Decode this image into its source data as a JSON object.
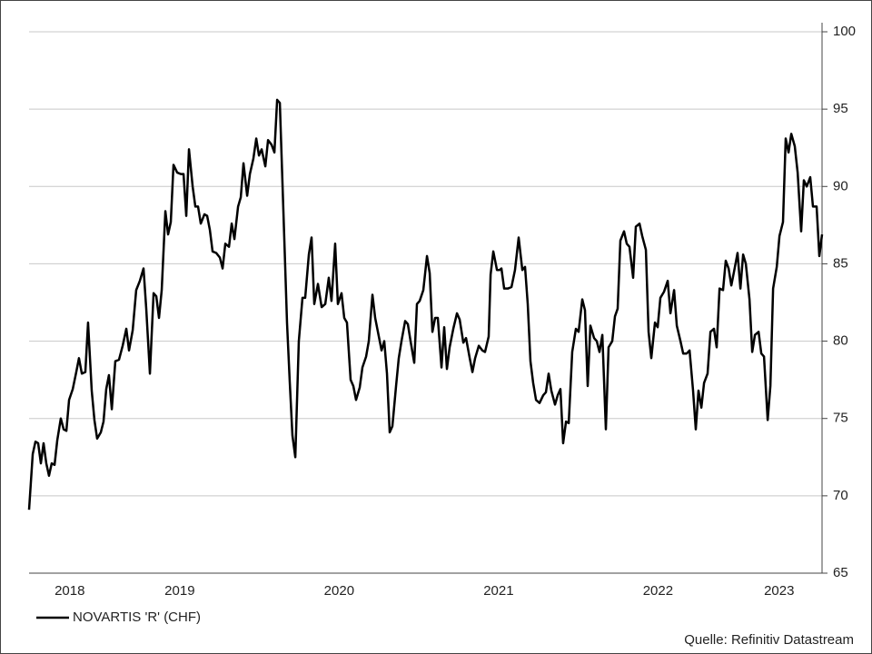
{
  "chart_data": {
    "type": "line",
    "source": "Quelle: Refinitiv Datastream",
    "xlim": [
      2018.555,
      2023.529
    ],
    "ylim": [
      65,
      100
    ],
    "yticks": [
      65,
      70,
      75,
      80,
      85,
      90,
      95,
      100
    ],
    "xticks": [
      {
        "value": 2018.81,
        "label": "2018"
      },
      {
        "value": 2019.5,
        "label": "2019"
      },
      {
        "value": 2020.5,
        "label": "2020"
      },
      {
        "value": 2021.5,
        "label": "2021"
      },
      {
        "value": 2022.5,
        "label": "2022"
      },
      {
        "value": 2023.26,
        "label": "2023"
      }
    ],
    "grid": true,
    "legend": "bottom-left",
    "x": [
      2018.555,
      2018.578,
      2018.595,
      2018.612,
      2018.629,
      2018.646,
      2018.663,
      2018.68,
      2018.697,
      2018.715,
      2018.732,
      2018.754,
      2018.772,
      2018.789,
      2018.806,
      2018.829,
      2018.851,
      2018.868,
      2018.886,
      2018.908,
      2018.925,
      2018.948,
      2018.965,
      2018.982,
      2019.005,
      2019.022,
      2019.039,
      2019.056,
      2019.074,
      2019.096,
      2019.119,
      2019.142,
      2019.165,
      2019.182,
      2019.205,
      2019.227,
      2019.25,
      2019.273,
      2019.29,
      2019.313,
      2019.336,
      2019.353,
      2019.37,
      2019.387,
      2019.41,
      2019.427,
      2019.444,
      2019.461,
      2019.484,
      2019.507,
      2019.524,
      2019.541,
      2019.558,
      2019.581,
      2019.598,
      2019.615,
      2019.632,
      2019.655,
      2019.672,
      2019.689,
      2019.706,
      2019.729,
      2019.752,
      2019.769,
      2019.786,
      2019.809,
      2019.826,
      2019.843,
      2019.866,
      2019.883,
      2019.9,
      2019.923,
      2019.94,
      2019.962,
      2019.98,
      2019.997,
      2020.014,
      2020.037,
      2020.054,
      2020.076,
      2020.094,
      2020.111,
      2020.128,
      2020.15,
      2020.173,
      2020.19,
      2020.207,
      2020.225,
      2020.247,
      2020.27,
      2020.287,
      2020.31,
      2020.327,
      2020.344,
      2020.367,
      2020.39,
      2020.413,
      2020.435,
      2020.452,
      2020.475,
      2020.492,
      2020.515,
      2020.532,
      2020.549,
      2020.572,
      2020.589,
      2020.606,
      2020.629,
      2020.646,
      2020.669,
      2020.686,
      2020.709,
      2020.726,
      2020.749,
      2020.766,
      2020.783,
      2020.8,
      2020.817,
      2020.834,
      2020.857,
      2020.874,
      2020.891,
      2020.914,
      2020.931,
      2020.948,
      2020.971,
      2020.988,
      2021.005,
      2021.028,
      2021.051,
      2021.068,
      2021.085,
      2021.102,
      2021.119,
      2021.142,
      2021.159,
      2021.176,
      2021.193,
      2021.216,
      2021.239,
      2021.256,
      2021.279,
      2021.296,
      2021.319,
      2021.336,
      2021.353,
      2021.376,
      2021.398,
      2021.415,
      2021.438,
      2021.45,
      2021.467,
      2021.49,
      2021.507,
      2021.518,
      2021.535,
      2021.558,
      2021.581,
      2021.603,
      2021.626,
      2021.649,
      2021.666,
      2021.683,
      2021.7,
      2021.717,
      2021.735,
      2021.757,
      2021.78,
      2021.797,
      2021.814,
      2021.831,
      2021.854,
      2021.871,
      2021.888,
      2021.905,
      2021.923,
      2021.94,
      2021.962,
      2021.985,
      2022.002,
      2022.025,
      2022.042,
      2022.059,
      2022.076,
      2022.099,
      2022.116,
      2022.133,
      2022.151,
      2022.173,
      2022.19,
      2022.213,
      2022.23,
      2022.247,
      2022.264,
      2022.287,
      2022.304,
      2022.321,
      2022.344,
      2022.361,
      2022.384,
      2022.401,
      2022.424,
      2022.441,
      2022.458,
      2022.481,
      2022.498,
      2022.515,
      2022.538,
      2022.561,
      2022.578,
      2022.601,
      2022.618,
      2022.641,
      2022.658,
      2022.68,
      2022.698,
      2022.72,
      2022.737,
      2022.754,
      2022.772,
      2022.789,
      2022.811,
      2022.829,
      2022.851,
      2022.868,
      2022.886,
      2022.908,
      2022.925,
      2022.943,
      2022.96,
      2022.977,
      2022.999,
      2023.017,
      2023.034,
      2023.051,
      2023.074,
      2023.091,
      2023.108,
      2023.131,
      2023.148,
      2023.165,
      2023.188,
      2023.205,
      2023.222,
      2023.245,
      2023.262,
      2023.284,
      2023.301,
      2023.319,
      2023.336,
      2023.358,
      2023.376,
      2023.398,
      2023.415,
      2023.433,
      2023.455,
      2023.472,
      2023.495,
      2023.512,
      2023.529
    ],
    "series": [
      {
        "name": "NOVARTIS 'R' (CHF)",
        "color": "#000000",
        "values": [
          69.1,
          72.7,
          73.5,
          73.4,
          72.1,
          73.4,
          72.1,
          71.3,
          72.1,
          72.0,
          73.6,
          75.0,
          74.3,
          74.2,
          76.2,
          76.9,
          78.0,
          78.9,
          77.9,
          78.0,
          81.2,
          76.8,
          74.9,
          73.7,
          74.1,
          74.8,
          76.9,
          77.8,
          75.6,
          78.7,
          78.8,
          79.7,
          80.8,
          79.4,
          80.7,
          83.3,
          83.9,
          84.7,
          82.1,
          77.9,
          83.1,
          82.9,
          81.5,
          83.3,
          88.4,
          86.9,
          87.7,
          91.4,
          90.9,
          90.8,
          90.8,
          88.1,
          92.4,
          90.0,
          88.7,
          88.7,
          87.6,
          88.2,
          88.1,
          87.2,
          85.8,
          85.7,
          85.4,
          84.7,
          86.3,
          86.1,
          87.6,
          86.6,
          88.7,
          89.3,
          91.5,
          89.4,
          90.8,
          91.8,
          93.1,
          92.0,
          92.4,
          91.3,
          93.0,
          92.7,
          92.2,
          95.6,
          95.4,
          88.5,
          81.2,
          77.4,
          73.9,
          72.5,
          80.0,
          82.8,
          82.8,
          85.6,
          86.7,
          82.4,
          83.7,
          82.2,
          82.4,
          84.1,
          82.6,
          86.3,
          82.4,
          83.1,
          81.5,
          81.2,
          77.5,
          77.1,
          76.2,
          77.0,
          78.3,
          79.0,
          80.0,
          83.0,
          81.5,
          80.3,
          79.4,
          80.0,
          77.9,
          74.1,
          74.5,
          77.1,
          78.9,
          80.0,
          81.3,
          81.1,
          80.0,
          78.6,
          82.4,
          82.6,
          83.3,
          85.5,
          84.4,
          80.6,
          81.5,
          81.5,
          78.3,
          80.9,
          78.2,
          79.6,
          80.8,
          81.8,
          81.4,
          79.9,
          80.2,
          78.9,
          78.0,
          78.9,
          79.7,
          79.4,
          79.3,
          80.3,
          84.3,
          85.8,
          84.6,
          84.6,
          84.7,
          83.4,
          83.4,
          83.5,
          84.6,
          86.7,
          84.6,
          84.8,
          82.4,
          78.7,
          77.3,
          76.2,
          76.0,
          76.5,
          76.7,
          77.9,
          76.8,
          75.9,
          76.5,
          76.9,
          73.4,
          74.8,
          74.7,
          79.3,
          80.8,
          80.6,
          82.7,
          82.0,
          77.1,
          81.0,
          80.2,
          80.0,
          79.3,
          80.4,
          74.3,
          79.6,
          80.0,
          81.6,
          82.1,
          86.5,
          87.1,
          86.3,
          86.1,
          84.1,
          87.4,
          87.6,
          86.8,
          85.9,
          80.6,
          78.9,
          81.2,
          80.9,
          82.8,
          83.2,
          83.9,
          81.8,
          83.3,
          81.0,
          80.0,
          79.2,
          79.2,
          79.4,
          76.8,
          74.3,
          76.8,
          75.7,
          77.3,
          77.9,
          80.6,
          80.8,
          79.6,
          83.4,
          83.3,
          85.2,
          84.7,
          83.6,
          84.5,
          85.7,
          83.4,
          85.6,
          85.0,
          82.7,
          79.3,
          80.4,
          80.6,
          79.2,
          79.0,
          74.9,
          77.1,
          83.4,
          84.8,
          86.8,
          87.7,
          93.1,
          92.2,
          93.4,
          92.6,
          90.9,
          87.1,
          90.4,
          90.0,
          90.6,
          88.7,
          88.7,
          85.5,
          86.9
        ]
      }
    ]
  }
}
